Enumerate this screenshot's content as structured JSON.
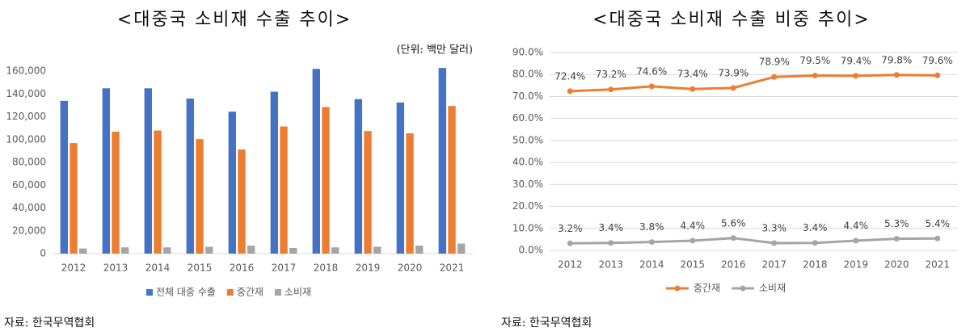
{
  "chart_data": [
    {
      "type": "bar",
      "title": "<대중국 소비재 수출 추이>",
      "unit": "(단위: 백만 달러)",
      "source": "자료: 한국무역협회",
      "categories": [
        "2012",
        "2013",
        "2014",
        "2015",
        "2016",
        "2017",
        "2018",
        "2019",
        "2020",
        "2021"
      ],
      "series": [
        {
          "name": "전체 대중 수출",
          "color": "#4472c4",
          "values": [
            134000,
            145000,
            145000,
            136000,
            124500,
            142000,
            162000,
            135500,
            132500,
            162800
          ]
        },
        {
          "name": "중간재",
          "color": "#ed7d31",
          "values": [
            97000,
            107000,
            108000,
            100500,
            91300,
            111500,
            128500,
            107500,
            105500,
            129500
          ]
        },
        {
          "name": "소비재",
          "color": "#a5a5a5",
          "values": [
            4500,
            5500,
            5500,
            6000,
            7000,
            5000,
            5500,
            6000,
            7000,
            8800
          ]
        }
      ],
      "ylim": [
        0,
        170000
      ],
      "yticks": [
        0,
        {
          "value": 20000,
          "label": "20,000"
        },
        {
          "value": 40000,
          "label": "40,000"
        },
        {
          "value": 60000,
          "label": "60,000"
        },
        {
          "value": 80000,
          "label": "80,000"
        },
        {
          "value": 100000,
          "label": "100,000"
        },
        {
          "value": 120000,
          "label": "120,000"
        },
        {
          "value": 140000,
          "label": "140,000"
        },
        {
          "value": 160000,
          "label": "160,000"
        }
      ],
      "grid": false,
      "legend": "bottom"
    },
    {
      "type": "line",
      "title": "<대중국 소비재 수출 비중 추이>",
      "source": "자료: 한국무역협회",
      "categories": [
        "2012",
        "2013",
        "2014",
        "2015",
        "2016",
        "2017",
        "2018",
        "2019",
        "2020",
        "2021"
      ],
      "series": [
        {
          "name": "중간재",
          "color": "#ed7d31",
          "values": [
            72.4,
            73.2,
            74.6,
            73.4,
            73.9,
            78.9,
            79.5,
            79.4,
            79.8,
            79.6
          ],
          "value_labels": [
            "72.4%",
            "73.2%",
            "74.6%",
            "73.4%",
            "73.9%",
            "78.9%",
            "79.5%",
            "79.4%",
            "79.8%",
            "79.6%"
          ]
        },
        {
          "name": "소비재",
          "color": "#a5a5a5",
          "values": [
            3.2,
            3.4,
            3.8,
            4.4,
            5.6,
            3.3,
            3.4,
            4.4,
            5.3,
            5.4
          ],
          "value_labels": [
            "3.2%",
            "3.4%",
            "3.8%",
            "4.4%",
            "5.6%",
            "3.3%",
            "3.4%",
            "4.4%",
            "5.3%",
            "5.4%"
          ]
        }
      ],
      "ylim": [
        0,
        90
      ],
      "yticks": [
        {
          "value": 0,
          "label": "0.0%"
        },
        {
          "value": 10,
          "label": "10.0%"
        },
        {
          "value": 20,
          "label": "20.0%"
        },
        {
          "value": 30,
          "label": "30.0%"
        },
        {
          "value": 40,
          "label": "40.0%"
        },
        {
          "value": 50,
          "label": "50.0%"
        },
        {
          "value": 60,
          "label": "60.0%"
        },
        {
          "value": 70,
          "label": "70.0%"
        },
        {
          "value": 80,
          "label": "80.0%"
        },
        {
          "value": 90,
          "label": "90.0%"
        }
      ],
      "grid": true,
      "legend": "bottom"
    }
  ]
}
